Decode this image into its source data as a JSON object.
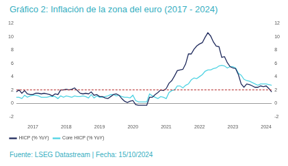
{
  "chart_data": {
    "type": "line",
    "title": "Gráfico 2: Inflación de la zona del euro (2017 - 2024)",
    "source": "Fuente: LSEG Datastream | Fecha: 15/10/2024",
    "categories": [
      null,
      null,
      null,
      null,
      null,
      null,
      "2017",
      null,
      null,
      null,
      null,
      null,
      null,
      null,
      null,
      null,
      null,
      null,
      "2018",
      null,
      null,
      null,
      null,
      null,
      null,
      null,
      null,
      null,
      null,
      null,
      "2019",
      null,
      null,
      null,
      null,
      null,
      null,
      null,
      null,
      null,
      null,
      null,
      "2020",
      null,
      null,
      null,
      null,
      null,
      null,
      null,
      null,
      null,
      null,
      null,
      "2021",
      null,
      null,
      null,
      null,
      null,
      null,
      null,
      null,
      null,
      null,
      null,
      "2022",
      null,
      null,
      null,
      null,
      null,
      null,
      null,
      null,
      null,
      null,
      null,
      "2023",
      null,
      null,
      null,
      null,
      null,
      null,
      null,
      null,
      null,
      null,
      null,
      "2024",
      null,
      null
    ],
    "series": [
      {
        "name": "HICP (% YoY)",
        "color": "#1f2a5c",
        "values": [
          1.7,
          2.0,
          1.5,
          1.9,
          1.4,
          1.3,
          1.3,
          1.5,
          1.5,
          1.4,
          1.5,
          1.4,
          1.3,
          1.1,
          1.4,
          1.3,
          2.0,
          2.0,
          2.1,
          2.0,
          2.1,
          2.3,
          1.9,
          1.5,
          1.4,
          1.5,
          1.4,
          1.7,
          1.2,
          1.3,
          1.0,
          1.0,
          0.8,
          0.7,
          1.0,
          1.3,
          1.4,
          1.2,
          0.7,
          0.3,
          0.1,
          0.3,
          0.4,
          -0.2,
          -0.3,
          -0.3,
          -0.3,
          -0.3,
          0.9,
          0.9,
          1.3,
          1.6,
          2.0,
          1.9,
          2.2,
          3.0,
          3.4,
          4.1,
          4.9,
          5.0,
          5.1,
          5.9,
          7.4,
          7.4,
          8.1,
          8.6,
          8.9,
          9.1,
          9.9,
          10.6,
          10.1,
          9.2,
          8.6,
          8.5,
          6.9,
          7.0,
          6.1,
          5.5,
          5.3,
          5.2,
          4.3,
          2.9,
          2.4,
          2.9,
          2.8,
          2.6,
          2.4,
          2.4,
          2.6,
          2.5,
          2.6,
          2.2,
          1.7
        ]
      },
      {
        "name": "Core HICP (% YoY)",
        "color": "#4fd3e3",
        "values": [
          0.9,
          0.9,
          0.7,
          1.2,
          0.9,
          1.1,
          1.2,
          1.2,
          1.1,
          0.9,
          0.9,
          0.9,
          1.0,
          1.0,
          1.0,
          0.7,
          1.1,
          0.9,
          1.1,
          1.0,
          0.9,
          1.1,
          1.0,
          1.0,
          1.1,
          1.0,
          0.8,
          1.3,
          0.8,
          1.1,
          0.9,
          0.9,
          1.0,
          1.1,
          1.3,
          1.3,
          1.1,
          1.2,
          1.0,
          0.9,
          0.9,
          0.8,
          1.2,
          0.4,
          0.2,
          0.2,
          0.2,
          0.2,
          1.4,
          1.1,
          0.9,
          0.7,
          1.0,
          0.9,
          0.7,
          1.6,
          1.9,
          2.0,
          2.6,
          2.6,
          2.3,
          2.7,
          2.9,
          3.5,
          3.8,
          3.7,
          4.0,
          4.3,
          4.8,
          5.0,
          5.0,
          5.2,
          5.3,
          5.6,
          5.7,
          5.6,
          5.3,
          5.5,
          5.5,
          5.3,
          4.5,
          4.2,
          3.6,
          3.4,
          3.3,
          3.1,
          2.9,
          2.7,
          2.9,
          2.9,
          2.9,
          2.8,
          2.7
        ]
      }
    ],
    "hline": {
      "value": 2,
      "color": "#b22222",
      "line_style": "dashed"
    },
    "ylim": [
      -2,
      12
    ],
    "yticks": [
      -2,
      0,
      2,
      4,
      6,
      8,
      10,
      12
    ],
    "y2lim": [
      -2,
      12
    ],
    "y2ticks": [
      -2,
      0,
      2,
      4,
      6,
      8,
      10,
      12
    ],
    "legend": "bottom"
  }
}
